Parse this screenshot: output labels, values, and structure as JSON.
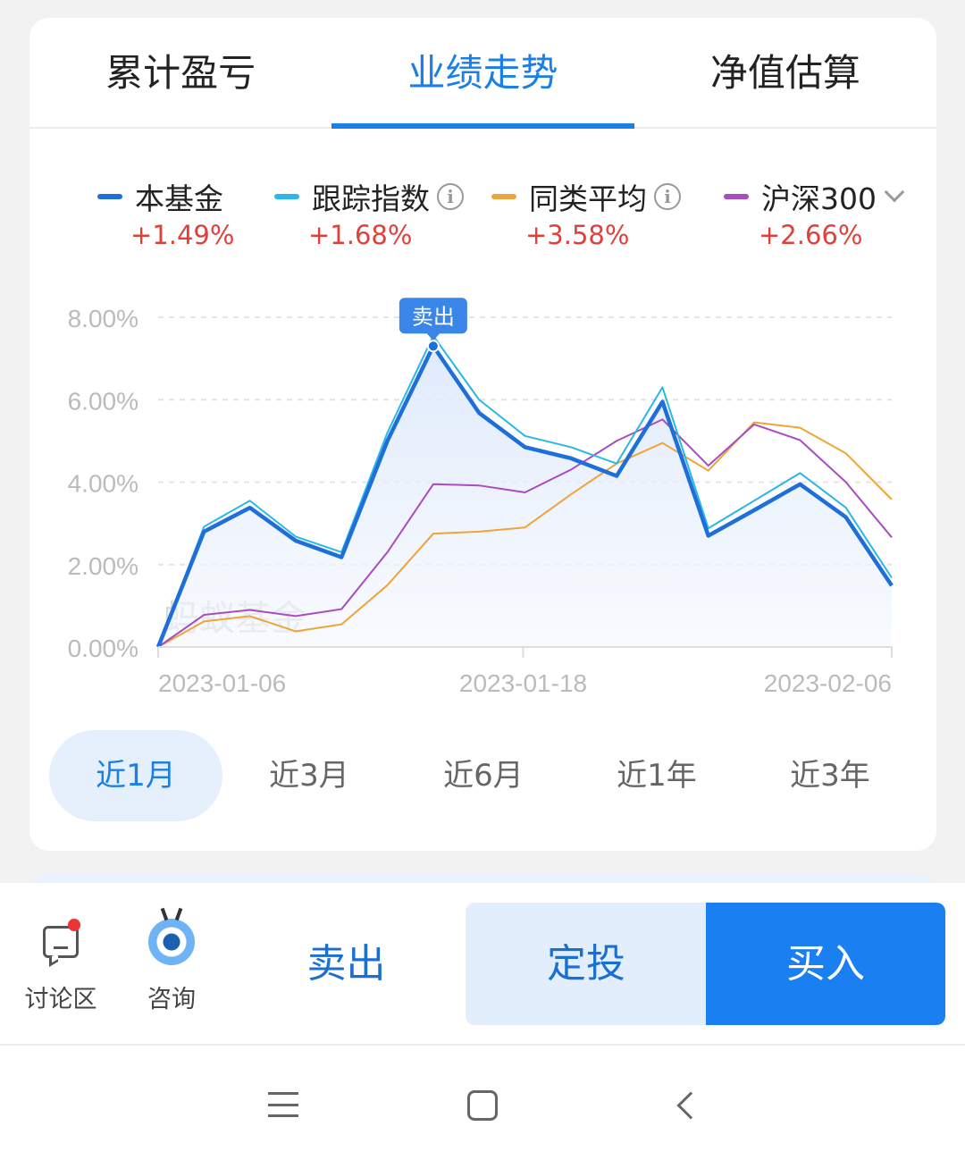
{
  "tabs": [
    {
      "label": "累计盈亏"
    },
    {
      "label": "业绩走势"
    },
    {
      "label": "净值估算"
    }
  ],
  "legend": [
    {
      "label": "本基金",
      "value": "+1.49%",
      "color": "#1e6fd9",
      "icon": null
    },
    {
      "label": "跟踪指数",
      "value": "+1.68%",
      "color": "#2bb7e8",
      "icon": "info-icon"
    },
    {
      "label": "同类平均",
      "value": "+3.58%",
      "color": "#efa43a",
      "icon": "info-icon"
    },
    {
      "label": "沪深300",
      "value": "+2.66%",
      "color": "#a94cc0",
      "icon": "chevron-down-icon"
    }
  ],
  "chart_data": {
    "type": "line",
    "yticks": [
      "8.00%",
      "6.00%",
      "4.00%",
      "2.00%",
      "0.00%"
    ],
    "ylim": [
      0,
      8
    ],
    "xticks": [
      "2023-01-06",
      "2023-01-18",
      "2023-02-06"
    ],
    "watermark": "蚂蚁基金",
    "marker": {
      "label": "卖出",
      "point_index": 6,
      "series": "本基金"
    },
    "series": [
      {
        "name": "本基金",
        "color": "#1e6fd9",
        "values": [
          0.0,
          2.8,
          3.38,
          2.58,
          2.18,
          5.0,
          7.3,
          5.68,
          4.85,
          4.58,
          4.15,
          5.95,
          2.7,
          3.32,
          3.95,
          3.15,
          1.49
        ]
      },
      {
        "name": "跟踪指数",
        "color": "#2bb7e8",
        "values": [
          0.0,
          2.92,
          3.55,
          2.68,
          2.3,
          5.2,
          7.55,
          6.0,
          5.12,
          4.85,
          4.45,
          6.3,
          2.88,
          3.55,
          4.22,
          3.38,
          1.68
        ]
      },
      {
        "name": "同类平均",
        "color": "#efa43a",
        "values": [
          0.0,
          0.62,
          0.75,
          0.38,
          0.55,
          1.5,
          2.75,
          2.8,
          2.9,
          3.7,
          4.45,
          4.95,
          4.28,
          5.45,
          5.32,
          4.7,
          3.58
        ]
      },
      {
        "name": "沪深300",
        "color": "#a94cc0",
        "values": [
          0.0,
          0.78,
          0.9,
          0.75,
          0.92,
          2.3,
          3.95,
          3.92,
          3.75,
          4.3,
          5.0,
          5.52,
          4.4,
          5.4,
          5.02,
          4.0,
          2.66
        ]
      }
    ]
  },
  "periods": [
    {
      "label": "近1月"
    },
    {
      "label": "近3月"
    },
    {
      "label": "近6月"
    },
    {
      "label": "近1年"
    },
    {
      "label": "近3年"
    }
  ],
  "bottom_bar": {
    "discuss_label": "讨论区",
    "consult_label": "咨询",
    "sell_label": "卖出",
    "sip_label": "定投",
    "buy_label": "买入"
  }
}
